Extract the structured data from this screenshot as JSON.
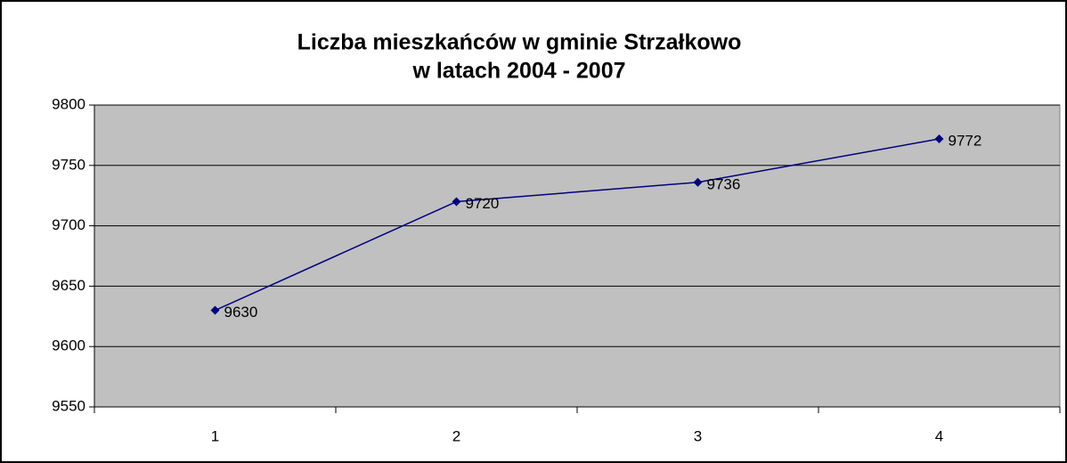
{
  "chart_data": {
    "type": "line",
    "title": [
      "Liczba mieszkańców w gminie Strzałkowo",
      "w latach 2004 - 2007"
    ],
    "categories": [
      "1",
      "2",
      "3",
      "4"
    ],
    "series": [
      {
        "name": "Liczba mieszkańców",
        "color": "#000080",
        "values": [
          9630,
          9720,
          9736,
          9772
        ]
      }
    ],
    "ylim": [
      9550,
      9800
    ],
    "yticks": [
      9550,
      9600,
      9650,
      9700,
      9750,
      9800
    ],
    "grid": true,
    "plot_background": "#c0c0c0"
  }
}
